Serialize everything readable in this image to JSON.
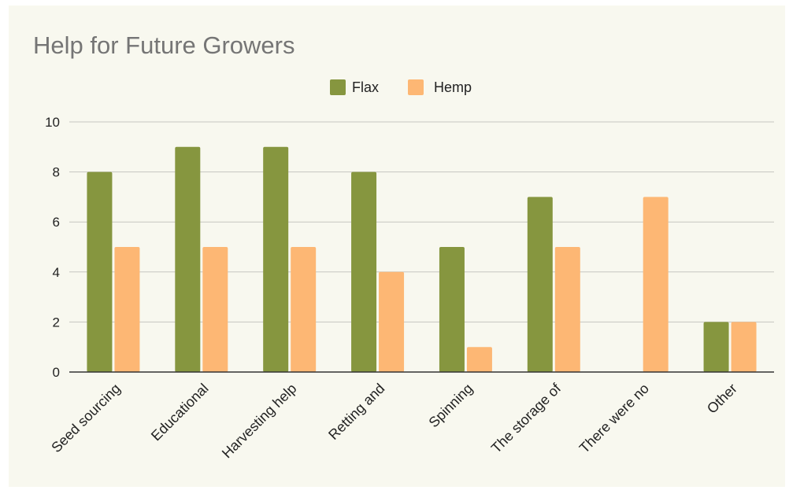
{
  "chart_data": {
    "type": "bar",
    "title": "Help for Future Growers",
    "categories": [
      "Seed sourcing",
      "Educational",
      "Harvesting help",
      "Retting and",
      "Spinning",
      "The storage of",
      "There were no",
      "Other"
    ],
    "series": [
      {
        "name": "Flax",
        "color": "#86963f",
        "values": [
          8,
          9,
          9,
          8,
          5,
          7,
          0,
          2
        ]
      },
      {
        "name": "Hemp",
        "color": "#fdb774",
        "values": [
          5,
          5,
          5,
          4,
          1,
          5,
          7,
          2
        ]
      }
    ],
    "ylim": [
      0,
      10
    ],
    "yticks": [
      0,
      2,
      4,
      6,
      8,
      10
    ],
    "xlabel": "",
    "ylabel": "",
    "grid": true,
    "legend_position": "top-center"
  }
}
